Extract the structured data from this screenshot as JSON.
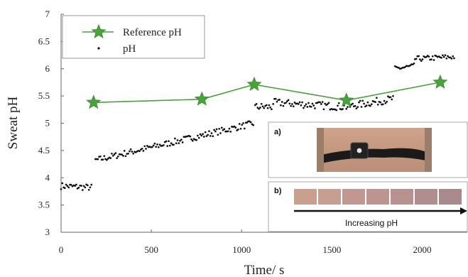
{
  "chart_data": {
    "type": "scatter",
    "xlabel": "Time/ s",
    "ylabel": "Sweat pH",
    "xlim": [
      0,
      2250
    ],
    "ylim": [
      3,
      7
    ],
    "xticks": [
      "0",
      "500",
      "1000",
      "1500",
      "2000"
    ],
    "xtick_values": [
      0,
      500,
      1000,
      1500,
      2000
    ],
    "yticks": [
      "3",
      "3.5",
      "4",
      "4.5",
      "5",
      "5.5",
      "6",
      "6.5",
      "7"
    ],
    "ytick_values": [
      3,
      3.5,
      4,
      4.5,
      5,
      5.5,
      6,
      6.5,
      7
    ],
    "legend_position": "top-left",
    "series": [
      {
        "name": "Reference pH",
        "style": "line-star",
        "color": "#4aa13e",
        "x": [
          180,
          780,
          1070,
          1580,
          2100
        ],
        "y": [
          5.38,
          5.44,
          5.71,
          5.42,
          5.75
        ]
      },
      {
        "name": "pH",
        "style": "dots",
        "color": "#111111",
        "segments": [
          {
            "x0": 0,
            "x1": 170,
            "y0": 3.85,
            "y1": 3.82,
            "noise": 0.06
          },
          {
            "x0": 190,
            "x1": 1070,
            "y0": 4.32,
            "y1": 5.0,
            "noise": 0.06
          },
          {
            "x0": 1075,
            "x1": 1170,
            "y0": 5.3,
            "y1": 5.3,
            "noise": 0.07
          },
          {
            "x0": 1175,
            "x1": 1570,
            "y0": 5.38,
            "y1": 5.3,
            "noise": 0.07
          },
          {
            "x0": 1580,
            "x1": 1840,
            "y0": 5.3,
            "y1": 5.45,
            "noise": 0.07
          },
          {
            "x0": 1850,
            "x1": 1960,
            "y0": 6.0,
            "y1": 6.05,
            "noise": 0.05
          },
          {
            "x0": 1960,
            "x1": 2180,
            "y0": 6.18,
            "y1": 6.22,
            "noise": 0.05
          }
        ]
      }
    ],
    "insets": [
      {
        "label": "a)",
        "caption": "",
        "photo": "pH sensor band worn around torso"
      },
      {
        "label": "b)",
        "caption": "Increasing pH",
        "swatch_colors": [
          "#c9a08f",
          "#c79f92",
          "#c09891",
          "#bc9591",
          "#b8928f",
          "#b08e8f",
          "#a8898c"
        ]
      }
    ]
  }
}
